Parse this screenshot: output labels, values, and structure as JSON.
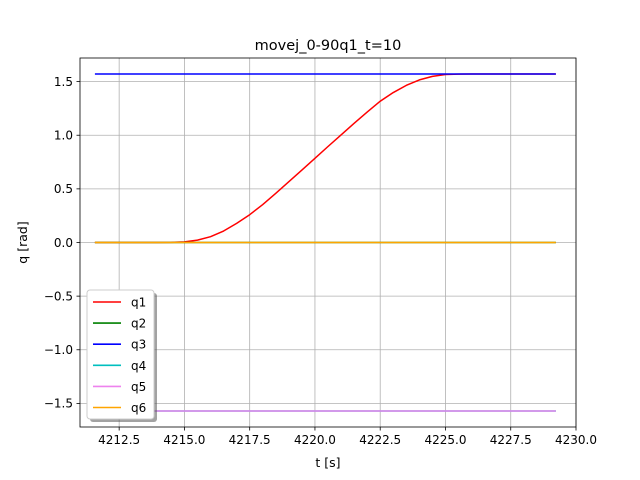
{
  "chart_data": {
    "type": "line",
    "title": "movej_0-90q1_t=10",
    "xlabel": "t [s]",
    "ylabel": "q [rad]",
    "xlim": [
      4211.0,
      4230.0
    ],
    "ylim": [
      -1.72,
      1.72
    ],
    "xticks": [
      4212.5,
      4215.0,
      4217.5,
      4220.0,
      4222.5,
      4225.0,
      4227.5,
      4230.0
    ],
    "xtick_labels": [
      "4212.5",
      "4215.0",
      "4217.5",
      "4220.0",
      "4222.5",
      "4225.0",
      "4227.5",
      "4230.0"
    ],
    "yticks": [
      -1.5,
      -1.0,
      -0.5,
      0.0,
      0.5,
      1.0,
      1.5
    ],
    "ytick_labels": [
      "−1.5",
      "−1.0",
      "−0.5",
      "0.0",
      "0.5",
      "1.0",
      "1.5"
    ],
    "grid": true,
    "legend_position": "lower-left",
    "series": [
      {
        "name": "q1",
        "color": "#ff0000",
        "x": [
          4211.6,
          4213.0,
          4214.0,
          4214.5,
          4215.0,
          4215.5,
          4216.0,
          4216.5,
          4217.0,
          4217.5,
          4218.0,
          4218.5,
          4219.0,
          4219.5,
          4220.0,
          4220.5,
          4221.0,
          4221.5,
          4222.0,
          4222.5,
          4223.0,
          4223.5,
          4224.0,
          4224.5,
          4225.0,
          4225.5,
          4226.0,
          4229.2
        ],
        "y": [
          0.0,
          0.0,
          0.0,
          0.001,
          0.006,
          0.022,
          0.054,
          0.107,
          0.178,
          0.259,
          0.354,
          0.459,
          0.567,
          0.675,
          0.785,
          0.895,
          1.003,
          1.111,
          1.216,
          1.317,
          1.398,
          1.465,
          1.516,
          1.549,
          1.566,
          1.57,
          1.571,
          1.571
        ]
      },
      {
        "name": "q2",
        "color": "#008000",
        "x": [
          4211.6,
          4229.2
        ],
        "y": [
          0.0,
          0.0
        ]
      },
      {
        "name": "q3",
        "color": "#0000ff",
        "x": [
          4211.6,
          4229.2
        ],
        "y": [
          1.571,
          1.571
        ]
      },
      {
        "name": "q4",
        "color": "#00bfbf",
        "x": [
          4211.6,
          4229.2
        ],
        "y": [
          -1.571,
          -1.571
        ]
      },
      {
        "name": "q5",
        "color": "#ee82ee",
        "x": [
          4211.6,
          4229.2
        ],
        "y": [
          -1.571,
          -1.571
        ]
      },
      {
        "name": "q6",
        "color": "#ffa500",
        "x": [
          4211.6,
          4229.2
        ],
        "y": [
          0.0,
          0.0
        ]
      }
    ]
  }
}
